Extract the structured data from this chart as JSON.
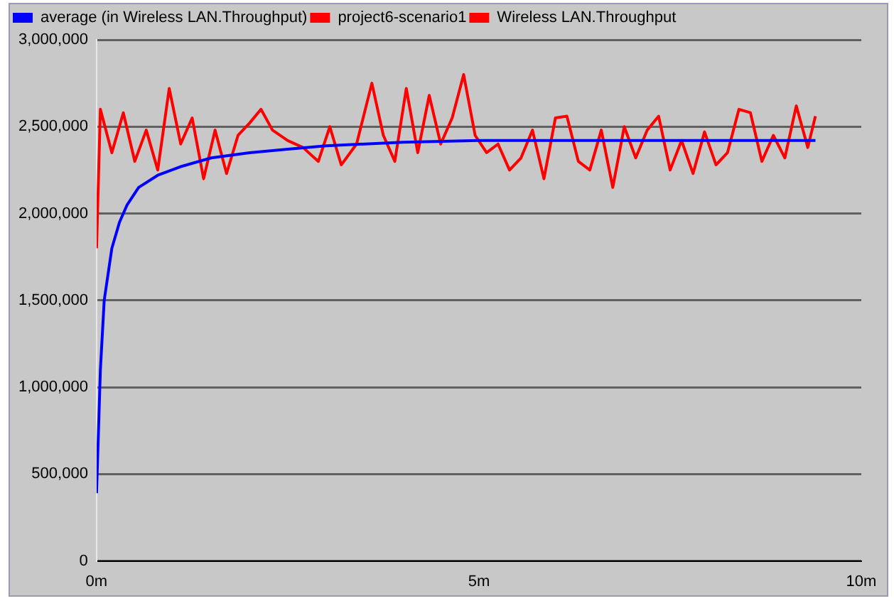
{
  "chart_data": {
    "type": "line",
    "legend_title": "project6-scenario1",
    "xlim": [
      0,
      10
    ],
    "xticks": [
      {
        "value": 0,
        "label": "0m"
      },
      {
        "value": 5,
        "label": "5m"
      },
      {
        "value": 10,
        "label": "10m"
      }
    ],
    "ylim": [
      0,
      3000000
    ],
    "yticks": [
      {
        "value": 0,
        "label": "0"
      },
      {
        "value": 500000,
        "label": "500,000"
      },
      {
        "value": 1000000,
        "label": "1,000,000"
      },
      {
        "value": 1500000,
        "label": "1,500,000"
      },
      {
        "value": 2000000,
        "label": "2,000,000"
      },
      {
        "value": 2500000,
        "label": "2,500,000"
      },
      {
        "value": 3000000,
        "label": "3,000,000"
      }
    ],
    "grid": "y",
    "legend": "top left",
    "marker": "none",
    "line_style": "solid",
    "series": [
      {
        "name": "average (in Wireless LAN.Throughput)",
        "color": "#0000ff",
        "x": [
          0,
          0.05,
          0.1,
          0.2,
          0.3,
          0.4,
          0.55,
          0.8,
          1.1,
          1.5,
          2,
          2.5,
          3,
          4,
          5,
          6,
          7,
          8,
          9,
          9.4
        ],
        "values": [
          390000,
          1100000,
          1500000,
          1800000,
          1950000,
          2050000,
          2150000,
          2220000,
          2270000,
          2320000,
          2350000,
          2370000,
          2390000,
          2410000,
          2420000,
          2420000,
          2420000,
          2420000,
          2420000,
          2420000
        ]
      },
      {
        "name": "Wireless LAN.Throughput",
        "color": "#ff0000",
        "x": [
          0,
          0.05,
          0.2,
          0.35,
          0.5,
          0.65,
          0.8,
          0.95,
          1.1,
          1.25,
          1.4,
          1.55,
          1.7,
          1.85,
          2,
          2.15,
          2.3,
          2.5,
          2.7,
          2.9,
          3.05,
          3.2,
          3.4,
          3.6,
          3.75,
          3.9,
          4.05,
          4.2,
          4.35,
          4.5,
          4.65,
          4.8,
          4.95,
          5.1,
          5.25,
          5.4,
          5.55,
          5.7,
          5.85,
          6,
          6.15,
          6.3,
          6.45,
          6.6,
          6.75,
          6.9,
          7.05,
          7.2,
          7.35,
          7.5,
          7.65,
          7.8,
          7.95,
          8.1,
          8.25,
          8.4,
          8.55,
          8.7,
          8.85,
          9,
          9.15,
          9.3,
          9.4
        ],
        "values": [
          1800000,
          2600000,
          2350000,
          2580000,
          2300000,
          2480000,
          2250000,
          2720000,
          2400000,
          2550000,
          2200000,
          2480000,
          2230000,
          2450000,
          2520000,
          2600000,
          2480000,
          2420000,
          2380000,
          2300000,
          2500000,
          2280000,
          2400000,
          2750000,
          2450000,
          2300000,
          2720000,
          2350000,
          2680000,
          2400000,
          2550000,
          2800000,
          2450000,
          2350000,
          2400000,
          2250000,
          2320000,
          2480000,
          2200000,
          2550000,
          2560000,
          2300000,
          2250000,
          2480000,
          2150000,
          2500000,
          2320000,
          2480000,
          2560000,
          2250000,
          2420000,
          2230000,
          2470000,
          2280000,
          2350000,
          2600000,
          2580000,
          2300000,
          2450000,
          2320000,
          2620000,
          2380000,
          2560000
        ]
      }
    ]
  }
}
